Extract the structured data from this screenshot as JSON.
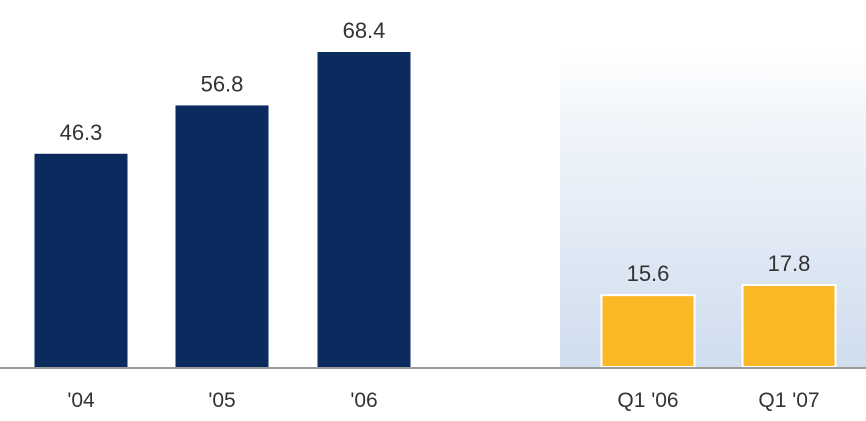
{
  "chart_data": {
    "type": "bar",
    "categories": [
      "'04",
      "'05",
      "'06",
      "Q1 '06",
      "Q1 '07"
    ],
    "values": [
      46.3,
      56.8,
      68.4,
      15.6,
      17.8
    ],
    "value_labels": [
      "46.3",
      "56.8",
      "68.4",
      "15.6",
      "17.8"
    ],
    "ylim": [
      0,
      68.4
    ],
    "grid": false,
    "legend": "none",
    "colors": {
      "annual": "#0b2a5e",
      "quarterly": "#fbb826",
      "quarterly_edge": "#ffffff",
      "baseline": "#9a9a9a",
      "label_text": "#333333",
      "panel_top": "#ffffff",
      "panel_bottom": "#cfddee"
    },
    "groups": [
      {
        "kind": "annual",
        "categories": [
          "'04",
          "'05",
          "'06"
        ]
      },
      {
        "kind": "quarterly",
        "categories": [
          "Q1 '06",
          "Q1 '07"
        ]
      }
    ]
  }
}
